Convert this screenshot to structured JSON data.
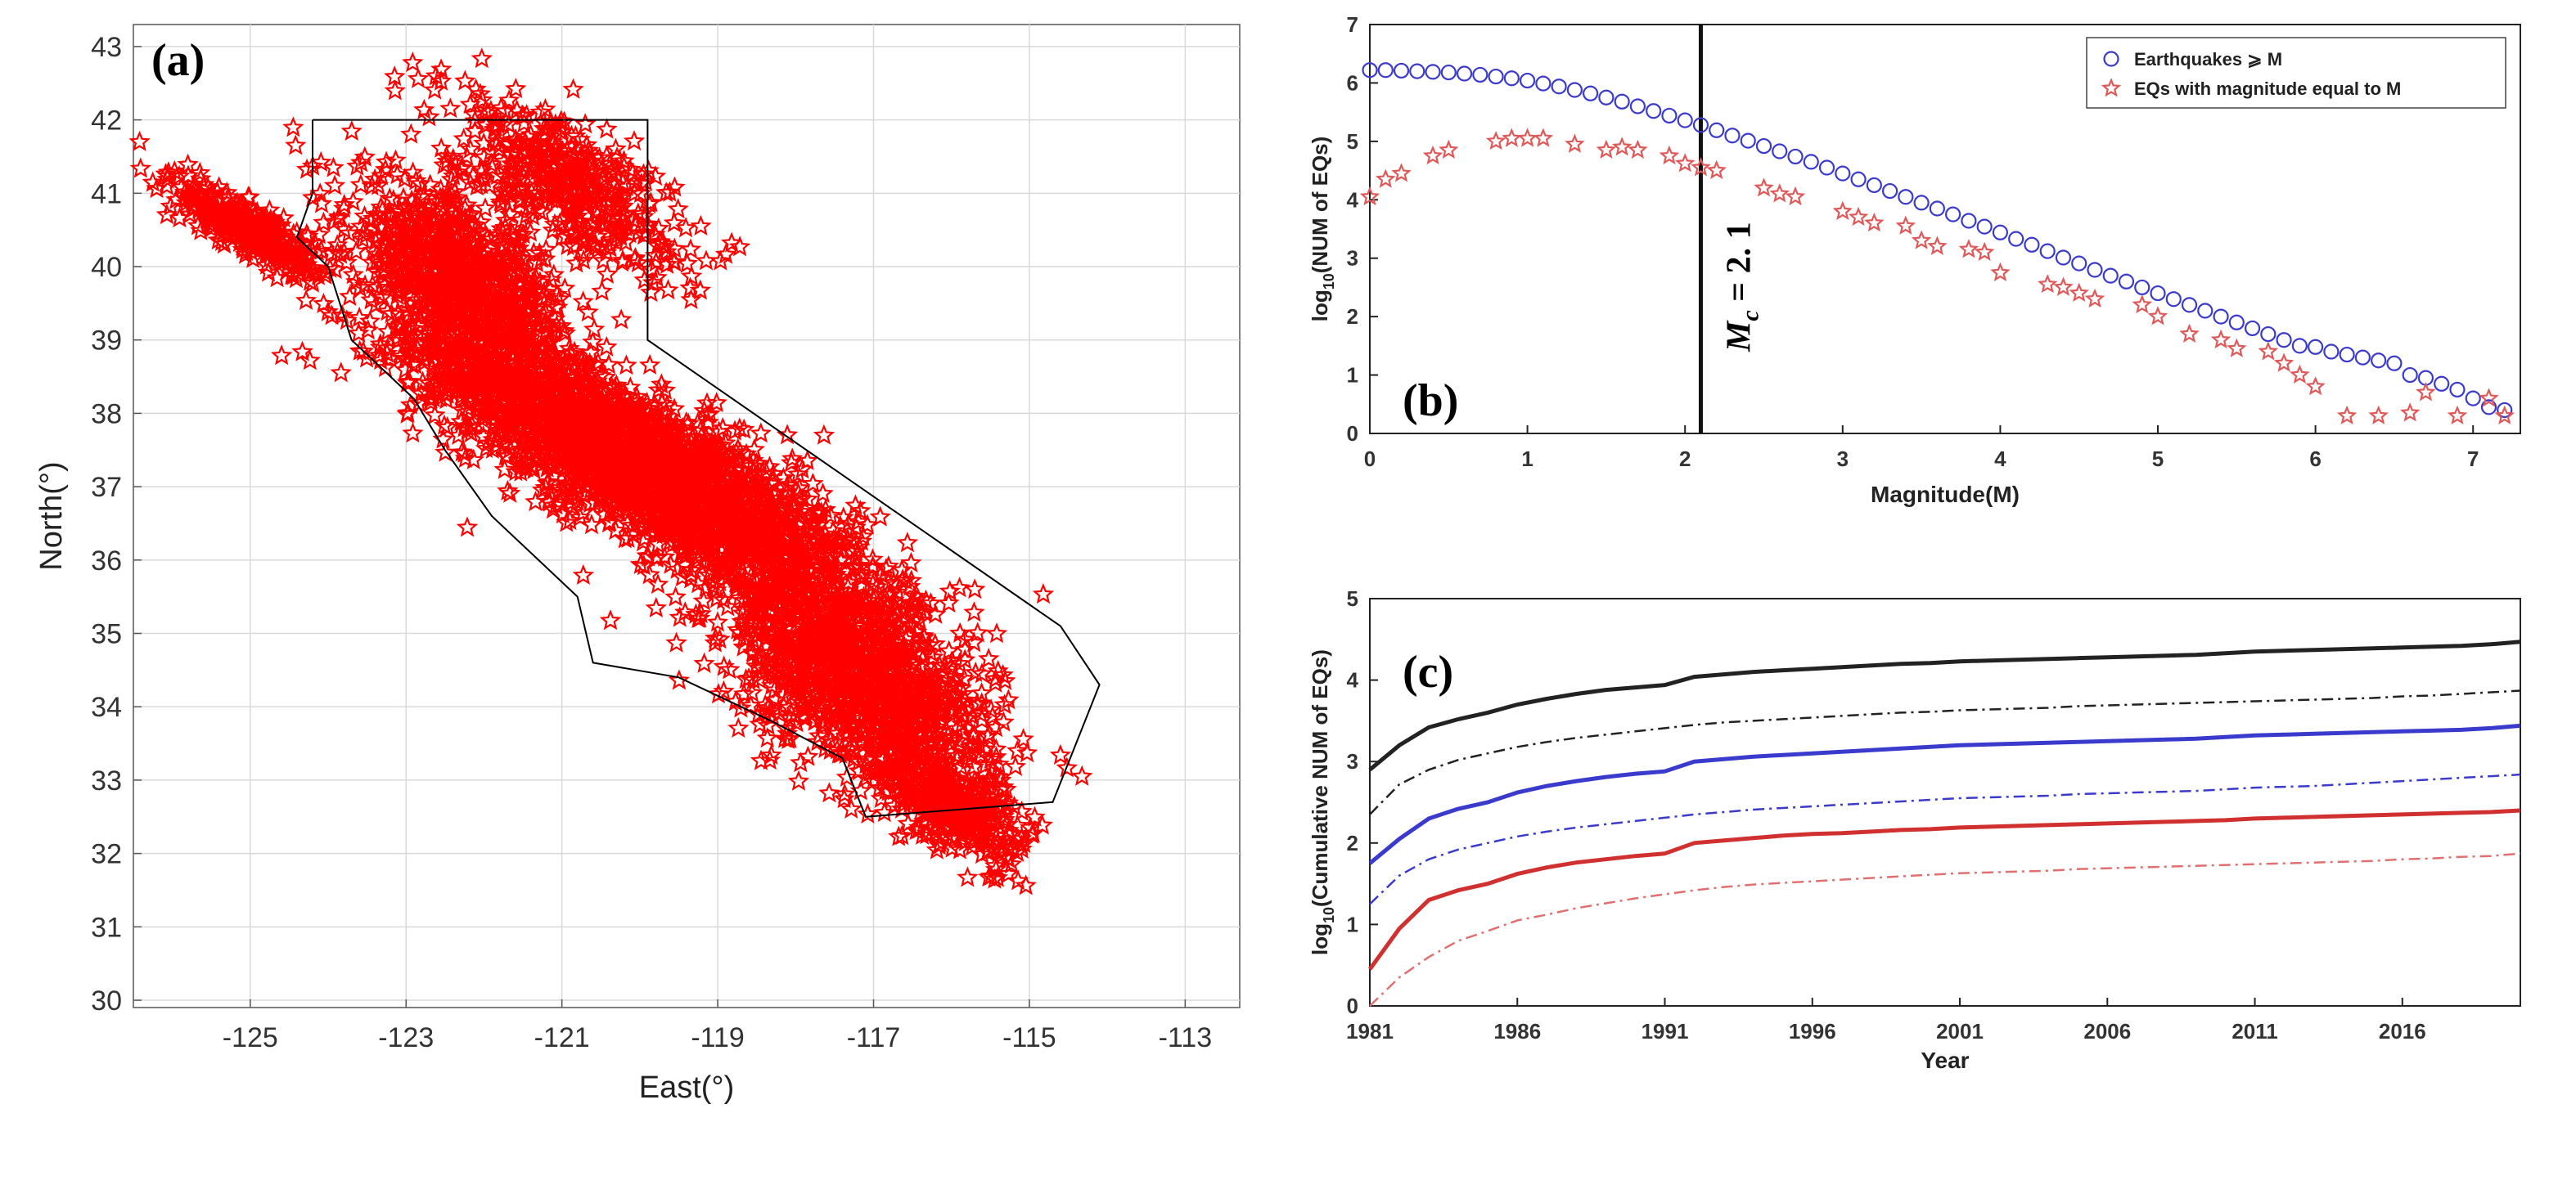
{
  "chart_data": [
    {
      "id": "a",
      "type": "scatter",
      "panel_label": "(a)",
      "xlabel": "East(°)",
      "ylabel": "North(°)",
      "xlim": [
        -126.5,
        -112.3
      ],
      "ylim": [
        29.9,
        43.3
      ],
      "xticks": [
        "-125",
        "-123",
        "-121",
        "-119",
        "-117",
        "-115",
        "-113"
      ],
      "xtick_values": [
        -125,
        -123,
        -121,
        -119,
        -117,
        -115,
        -113
      ],
      "yticks": [
        "30",
        "31",
        "32",
        "33",
        "34",
        "35",
        "36",
        "37",
        "38",
        "39",
        "40",
        "41",
        "42",
        "43"
      ],
      "ytick_values": [
        30,
        31,
        32,
        33,
        34,
        35,
        36,
        37,
        38,
        39,
        40,
        41,
        42,
        43
      ],
      "marker": "star",
      "marker_color": "#ff0000",
      "grid": true,
      "boundary_color": "#000000",
      "boundary": [
        [
          -124.2,
          42.0
        ],
        [
          -119.9,
          42.0
        ],
        [
          -119.9,
          39.0
        ],
        [
          -114.6,
          35.1
        ],
        [
          -114.1,
          34.3
        ],
        [
          -114.7,
          32.7
        ],
        [
          -117.1,
          32.5
        ],
        [
          -117.4,
          33.3
        ],
        [
          -118.3,
          33.8
        ],
        [
          -119.5,
          34.4
        ],
        [
          -120.6,
          34.6
        ],
        [
          -120.8,
          35.5
        ],
        [
          -121.9,
          36.6
        ],
        [
          -122.5,
          37.5
        ],
        [
          -122.9,
          38.2
        ],
        [
          -123.7,
          39.0
        ],
        [
          -124.0,
          40.0
        ],
        [
          -124.4,
          40.4
        ],
        [
          -124.2,
          41.0
        ],
        [
          -124.2,
          42.0
        ]
      ],
      "clusters": [
        {
          "center": [
            -120.0,
            37.3
          ],
          "spread": [
            2.6,
            0.9
          ],
          "count": 2600
        },
        {
          "center": [
            -122.3,
            39.8
          ],
          "spread": [
            1.3,
            1.0
          ],
          "count": 900
        },
        {
          "center": [
            -117.2,
            34.4
          ],
          "spread": [
            1.6,
            1.2
          ],
          "count": 1300
        },
        {
          "center": [
            -125.0,
            40.5
          ],
          "spread": [
            0.8,
            0.35
          ],
          "count": 350
        },
        {
          "center": [
            -121.0,
            41.2
          ],
          "spread": [
            1.4,
            0.8
          ],
          "count": 450
        },
        {
          "center": [
            -116.0,
            32.6
          ],
          "spread": [
            0.9,
            0.5
          ],
          "count": 300
        }
      ]
    },
    {
      "id": "b",
      "type": "scatter",
      "panel_label": "(b)",
      "xlabel": "Magnitude(M)",
      "ylabel_base": "log",
      "ylabel_sub": "10",
      "ylabel_rest": "(NUM of EQs)",
      "xlim": [
        0,
        7.3
      ],
      "ylim": [
        0,
        7
      ],
      "xticks": [
        "0",
        "1",
        "2",
        "3",
        "4",
        "5",
        "6",
        "7"
      ],
      "xtick_values": [
        0,
        1,
        2,
        3,
        4,
        5,
        6,
        7
      ],
      "yticks": [
        "0",
        "1",
        "2",
        "3",
        "4",
        "5",
        "6",
        "7"
      ],
      "ytick_values": [
        0,
        1,
        2,
        3,
        4,
        5,
        6,
        7
      ],
      "legend_position": "top-right",
      "mc_value": 2.1,
      "mc_label": "M",
      "mc_sub": "c",
      "mc_text": " = 2. 1",
      "series": [
        {
          "name": "Earthquakes ⩾ M",
          "marker": "circle",
          "color": "#3a3acc",
          "x": [
            0,
            0.1,
            0.2,
            0.3,
            0.4,
            0.5,
            0.6,
            0.7,
            0.8,
            0.9,
            1.0,
            1.1,
            1.2,
            1.3,
            1.4,
            1.5,
            1.6,
            1.7,
            1.8,
            1.9,
            2.0,
            2.1,
            2.2,
            2.3,
            2.4,
            2.5,
            2.6,
            2.7,
            2.8,
            2.9,
            3.0,
            3.1,
            3.2,
            3.3,
            3.4,
            3.5,
            3.6,
            3.7,
            3.8,
            3.9,
            4.0,
            4.1,
            4.2,
            4.3,
            4.4,
            4.5,
            4.6,
            4.7,
            4.8,
            4.9,
            5.0,
            5.1,
            5.2,
            5.3,
            5.4,
            5.5,
            5.6,
            5.7,
            5.8,
            5.9,
            6.0,
            6.1,
            6.2,
            6.3,
            6.4,
            6.5,
            6.6,
            6.7,
            6.8,
            6.9,
            7.0,
            7.1,
            7.2
          ],
          "y": [
            6.22,
            6.22,
            6.21,
            6.2,
            6.19,
            6.18,
            6.16,
            6.14,
            6.11,
            6.08,
            6.04,
            5.99,
            5.94,
            5.88,
            5.82,
            5.75,
            5.68,
            5.6,
            5.52,
            5.44,
            5.36,
            5.28,
            5.19,
            5.1,
            5.01,
            4.92,
            4.83,
            4.74,
            4.65,
            4.55,
            4.45,
            4.35,
            4.25,
            4.15,
            4.05,
            3.95,
            3.85,
            3.75,
            3.64,
            3.54,
            3.44,
            3.33,
            3.23,
            3.12,
            3.01,
            2.91,
            2.8,
            2.7,
            2.6,
            2.5,
            2.4,
            2.3,
            2.2,
            2.1,
            2.0,
            1.9,
            1.8,
            1.7,
            1.6,
            1.5,
            1.48,
            1.4,
            1.35,
            1.3,
            1.25,
            1.2,
            1.0,
            0.95,
            0.85,
            0.75,
            0.6,
            0.45,
            0.4
          ]
        },
        {
          "name": "EQs with magnitude equal to M",
          "marker": "star",
          "color": "#e05858",
          "x": [
            0,
            0.1,
            0.2,
            0.4,
            0.5,
            0.8,
            0.9,
            1.0,
            1.1,
            1.3,
            1.5,
            1.6,
            1.7,
            1.9,
            2.0,
            2.1,
            2.2,
            2.5,
            2.6,
            2.7,
            3.0,
            3.1,
            3.2,
            3.4,
            3.5,
            3.6,
            3.8,
            3.9,
            4.0,
            4.3,
            4.4,
            4.5,
            4.6,
            4.9,
            5.0,
            5.2,
            5.4,
            5.5,
            5.7,
            5.8,
            5.9,
            6.0,
            6.2,
            6.4,
            6.6,
            6.7,
            6.9,
            7.1,
            7.2
          ],
          "y": [
            4.05,
            4.35,
            4.45,
            4.75,
            4.85,
            5.0,
            5.05,
            5.05,
            5.05,
            4.95,
            4.85,
            4.9,
            4.85,
            4.75,
            4.62,
            4.55,
            4.5,
            4.2,
            4.1,
            4.05,
            3.8,
            3.7,
            3.6,
            3.55,
            3.3,
            3.2,
            3.15,
            3.1,
            2.75,
            2.55,
            2.5,
            2.4,
            2.3,
            2.2,
            2.0,
            1.7,
            1.6,
            1.45,
            1.4,
            1.2,
            1.0,
            0.8,
            0.3,
            0.3,
            0.35,
            0.7,
            0.3,
            0.6,
            0.3
          ]
        }
      ]
    },
    {
      "id": "c",
      "type": "line",
      "panel_label": "(c)",
      "xlabel": "Year",
      "ylabel_base": "log",
      "ylabel_sub": "10",
      "ylabel_rest": "(Cumulative NUM of EQs)",
      "xlim": [
        1981,
        2020
      ],
      "ylim": [
        0,
        5
      ],
      "xticks": [
        "1981",
        "1986",
        "1991",
        "1996",
        "2001",
        "2006",
        "2011",
        "2016"
      ],
      "xtick_values": [
        1981,
        1986,
        1991,
        1996,
        2001,
        2006,
        2011,
        2016
      ],
      "yticks": [
        "0",
        "1",
        "2",
        "3",
        "4",
        "5"
      ],
      "ytick_values": [
        0,
        1,
        2,
        3,
        4,
        5
      ],
      "x": [
        1981,
        1982,
        1983,
        1984,
        1985,
        1986,
        1987,
        1988,
        1989,
        1990,
        1991,
        1992,
        1993,
        1994,
        1995,
        1996,
        1997,
        1998,
        1999,
        2000,
        2001,
        2002,
        2003,
        2004,
        2005,
        2006,
        2007,
        2008,
        2009,
        2010,
        2011,
        2012,
        2013,
        2014,
        2015,
        2016,
        2017,
        2018,
        2019,
        2020
      ],
      "series": [
        {
          "color": "#222222",
          "style": "solid",
          "y": [
            2.9,
            3.2,
            3.42,
            3.52,
            3.6,
            3.7,
            3.77,
            3.83,
            3.88,
            3.91,
            3.94,
            4.04,
            4.07,
            4.1,
            4.12,
            4.14,
            4.16,
            4.18,
            4.2,
            4.21,
            4.23,
            4.24,
            4.25,
            4.26,
            4.27,
            4.28,
            4.29,
            4.3,
            4.31,
            4.33,
            4.35,
            4.36,
            4.37,
            4.38,
            4.39,
            4.4,
            4.41,
            4.42,
            4.44,
            4.47
          ]
        },
        {
          "color": "#222222",
          "style": "dashdot",
          "y": [
            2.35,
            2.72,
            2.9,
            3.02,
            3.1,
            3.18,
            3.24,
            3.29,
            3.33,
            3.37,
            3.41,
            3.45,
            3.48,
            3.5,
            3.52,
            3.54,
            3.56,
            3.58,
            3.6,
            3.61,
            3.63,
            3.64,
            3.65,
            3.66,
            3.68,
            3.69,
            3.7,
            3.71,
            3.72,
            3.73,
            3.74,
            3.75,
            3.76,
            3.77,
            3.78,
            3.8,
            3.81,
            3.83,
            3.85,
            3.87
          ]
        },
        {
          "color": "#3a3acc",
          "style": "solid",
          "y": [
            1.75,
            2.05,
            2.3,
            2.42,
            2.5,
            2.62,
            2.7,
            2.76,
            2.81,
            2.85,
            2.88,
            3.0,
            3.03,
            3.06,
            3.08,
            3.1,
            3.12,
            3.14,
            3.16,
            3.18,
            3.2,
            3.21,
            3.22,
            3.23,
            3.24,
            3.25,
            3.26,
            3.27,
            3.28,
            3.3,
            3.32,
            3.33,
            3.34,
            3.35,
            3.36,
            3.37,
            3.38,
            3.39,
            3.41,
            3.44
          ]
        },
        {
          "color": "#3a3acc",
          "style": "dashdot",
          "y": [
            1.25,
            1.6,
            1.8,
            1.92,
            2.0,
            2.08,
            2.14,
            2.19,
            2.23,
            2.27,
            2.31,
            2.35,
            2.38,
            2.41,
            2.43,
            2.45,
            2.47,
            2.49,
            2.51,
            2.53,
            2.55,
            2.56,
            2.57,
            2.58,
            2.6,
            2.61,
            2.62,
            2.63,
            2.64,
            2.66,
            2.68,
            2.69,
            2.7,
            2.72,
            2.74,
            2.76,
            2.78,
            2.8,
            2.82,
            2.84
          ]
        },
        {
          "color": "#d03030",
          "style": "solid",
          "y": [
            0.45,
            0.95,
            1.3,
            1.42,
            1.5,
            1.62,
            1.7,
            1.76,
            1.8,
            1.84,
            1.87,
            2.0,
            2.03,
            2.06,
            2.09,
            2.11,
            2.12,
            2.14,
            2.16,
            2.17,
            2.19,
            2.2,
            2.21,
            2.22,
            2.23,
            2.24,
            2.25,
            2.26,
            2.27,
            2.28,
            2.3,
            2.31,
            2.32,
            2.33,
            2.34,
            2.35,
            2.36,
            2.37,
            2.38,
            2.4
          ]
        },
        {
          "color": "#e07070",
          "style": "dashdot",
          "y": [
            0.0,
            0.35,
            0.6,
            0.8,
            0.92,
            1.05,
            1.12,
            1.2,
            1.26,
            1.32,
            1.37,
            1.42,
            1.46,
            1.49,
            1.51,
            1.53,
            1.55,
            1.57,
            1.59,
            1.61,
            1.63,
            1.64,
            1.65,
            1.66,
            1.68,
            1.69,
            1.7,
            1.71,
            1.72,
            1.73,
            1.74,
            1.75,
            1.76,
            1.77,
            1.78,
            1.8,
            1.81,
            1.83,
            1.84,
            1.87
          ]
        }
      ]
    }
  ]
}
